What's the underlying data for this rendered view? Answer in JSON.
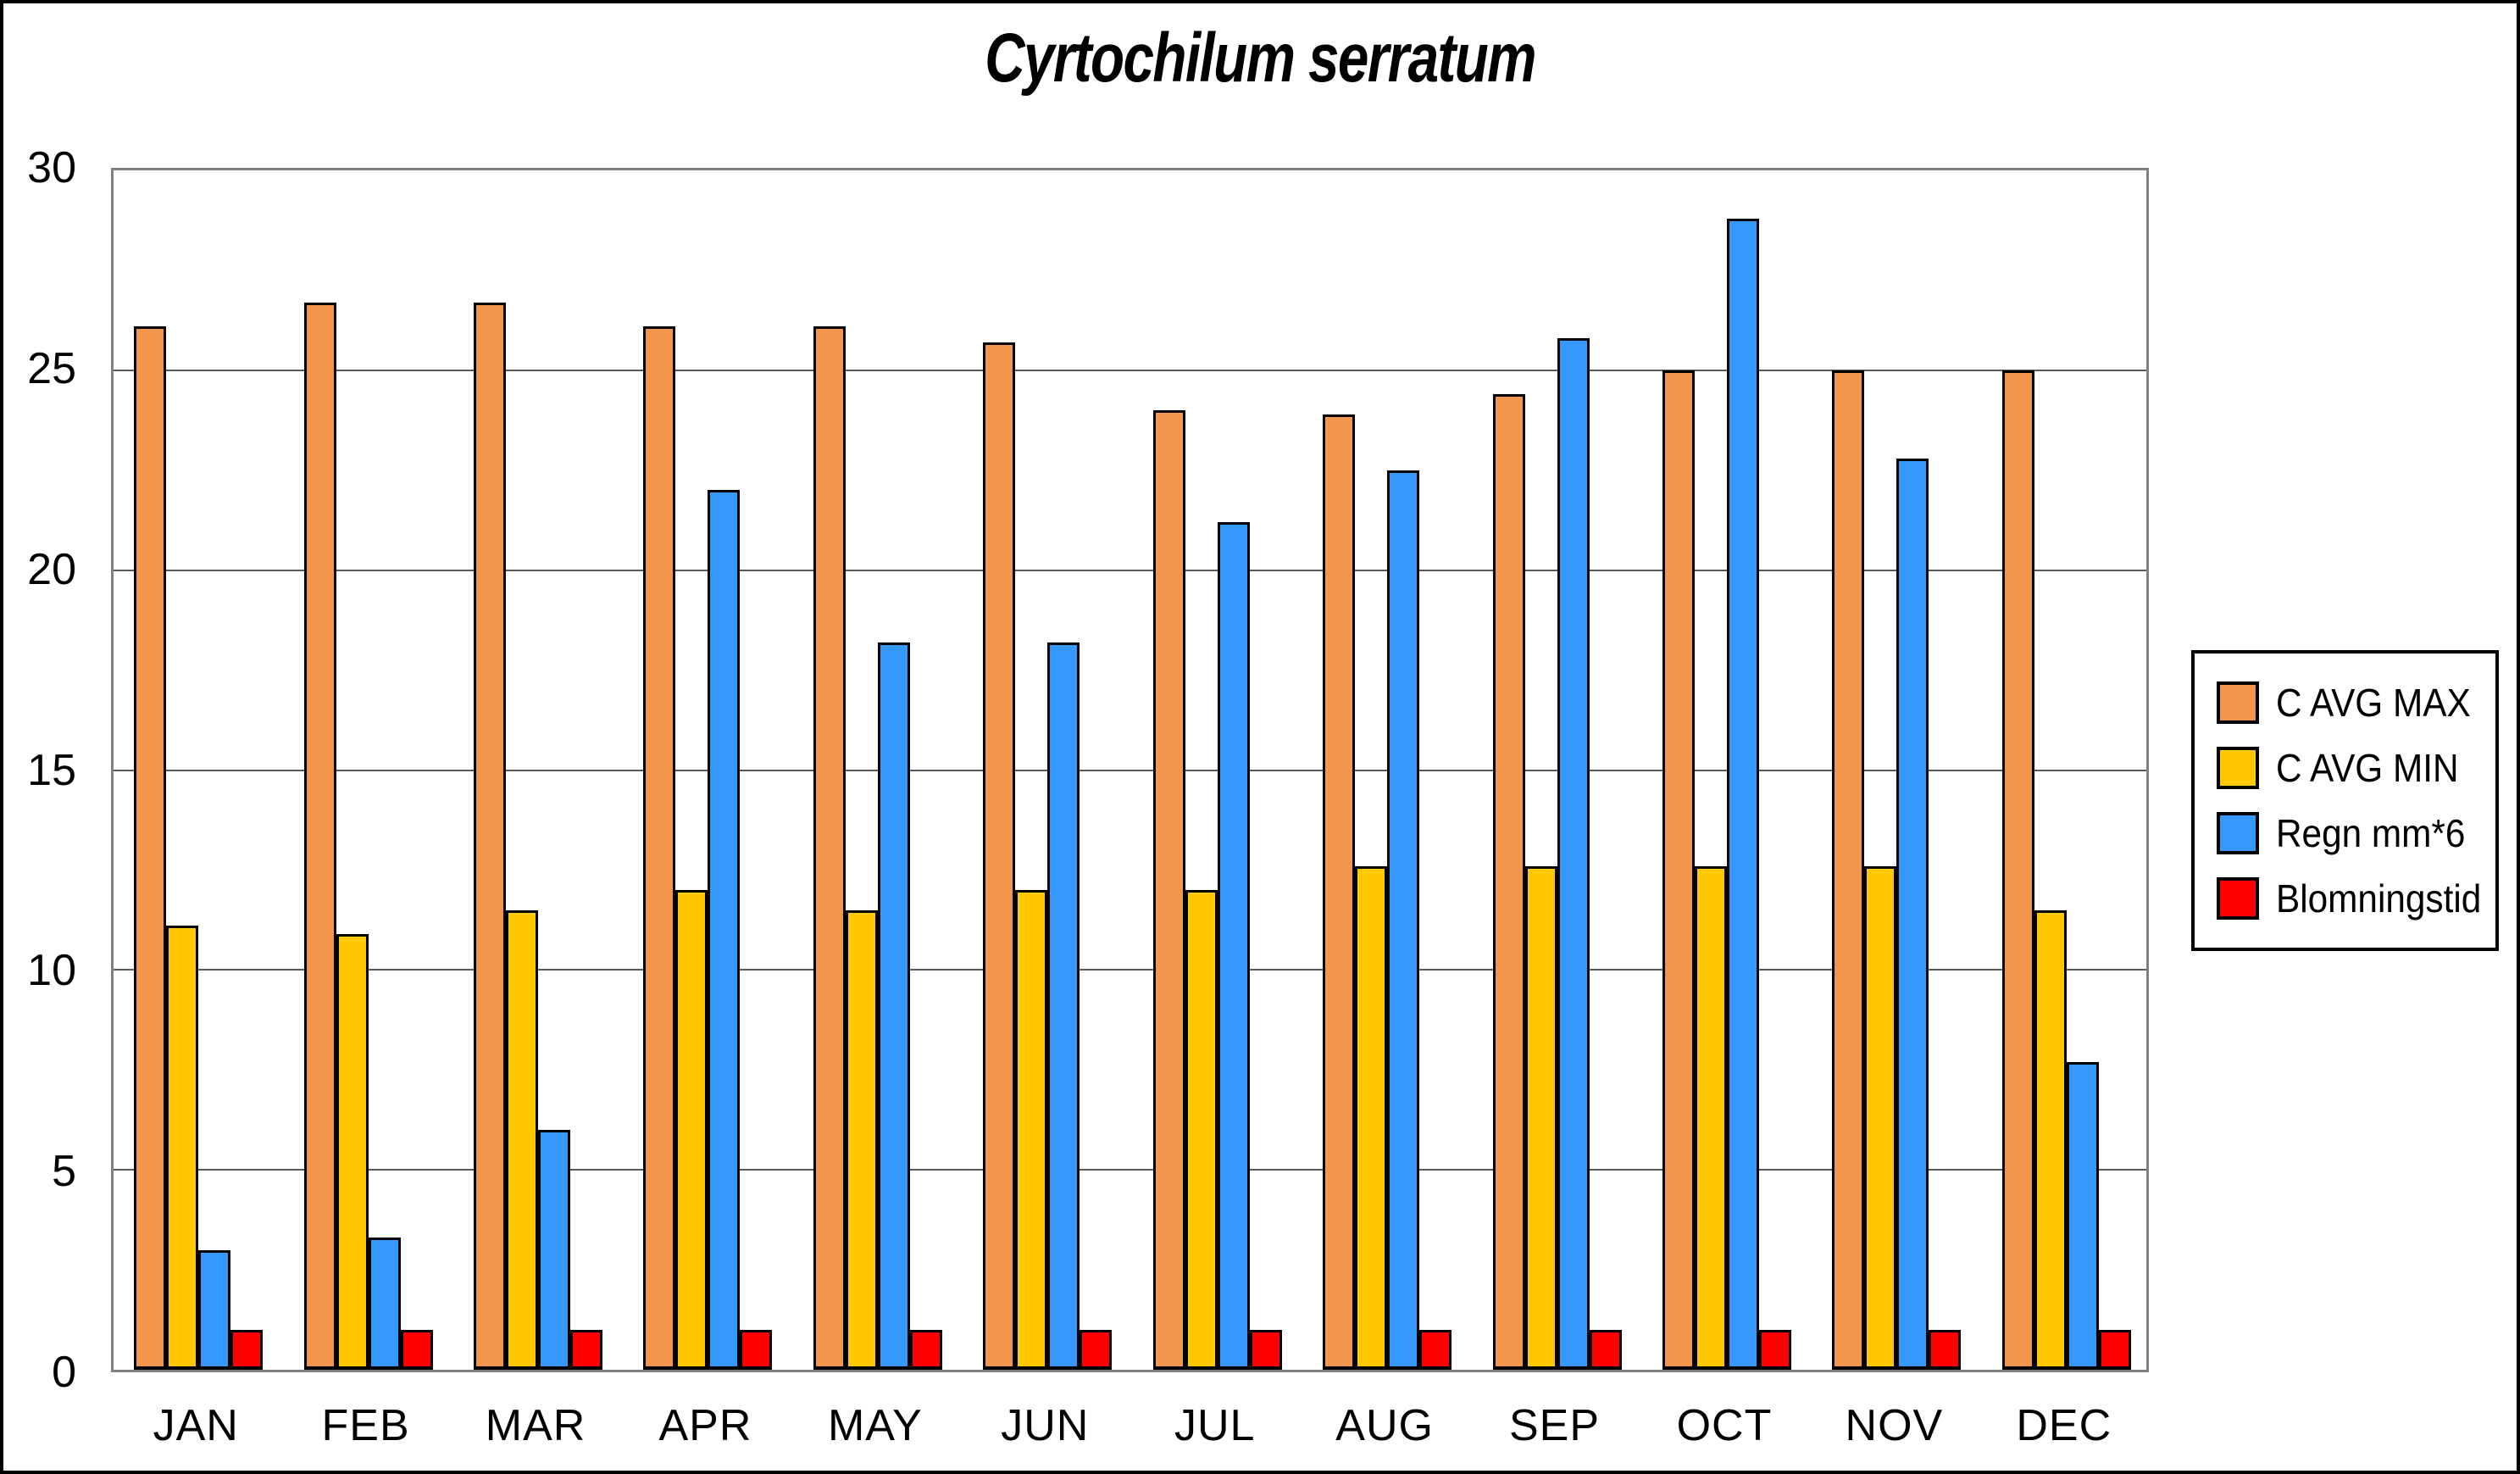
{
  "title": "Cyrtochilum serratum",
  "chart_data": {
    "type": "bar",
    "title": "Cyrtochilum serratum",
    "categories": [
      "JAN",
      "FEB",
      "MAR",
      "APR",
      "MAY",
      "JUN",
      "JUL",
      "AUG",
      "SEP",
      "OCT",
      "NOV",
      "DEC"
    ],
    "series": [
      {
        "name": "C AVG MAX",
        "color": "#F2964E",
        "values": [
          26.1,
          26.7,
          26.7,
          26.1,
          26.1,
          25.7,
          24.0,
          23.9,
          24.4,
          25.0,
          25.0,
          25.0
        ]
      },
      {
        "name": "C AVG MIN",
        "color": "#FFC800",
        "values": [
          11.1,
          10.9,
          11.5,
          12.0,
          11.5,
          12.0,
          12.0,
          12.6,
          12.6,
          12.6,
          12.6,
          11.5
        ]
      },
      {
        "name": "Regn mm*6",
        "color": "#3598FA",
        "values": [
          3.0,
          3.3,
          6.0,
          22.0,
          18.2,
          18.2,
          21.2,
          22.5,
          25.8,
          28.8,
          22.8,
          7.7
        ]
      },
      {
        "name": "Blomningstid",
        "color": "#FF0000",
        "values": [
          1.0,
          1.0,
          1.0,
          1.0,
          1.0,
          1.0,
          1.0,
          1.0,
          1.0,
          1.0,
          1.0,
          1.0
        ]
      }
    ],
    "xlabel": "",
    "ylabel": "",
    "ylim": [
      0,
      30
    ],
    "yticks": [
      0,
      5,
      10,
      15,
      20,
      25,
      30
    ],
    "grid": true,
    "legend_position": "right",
    "bar_border_color": "#000000",
    "gridline_color": "#595959",
    "axis_color": "#808080"
  }
}
